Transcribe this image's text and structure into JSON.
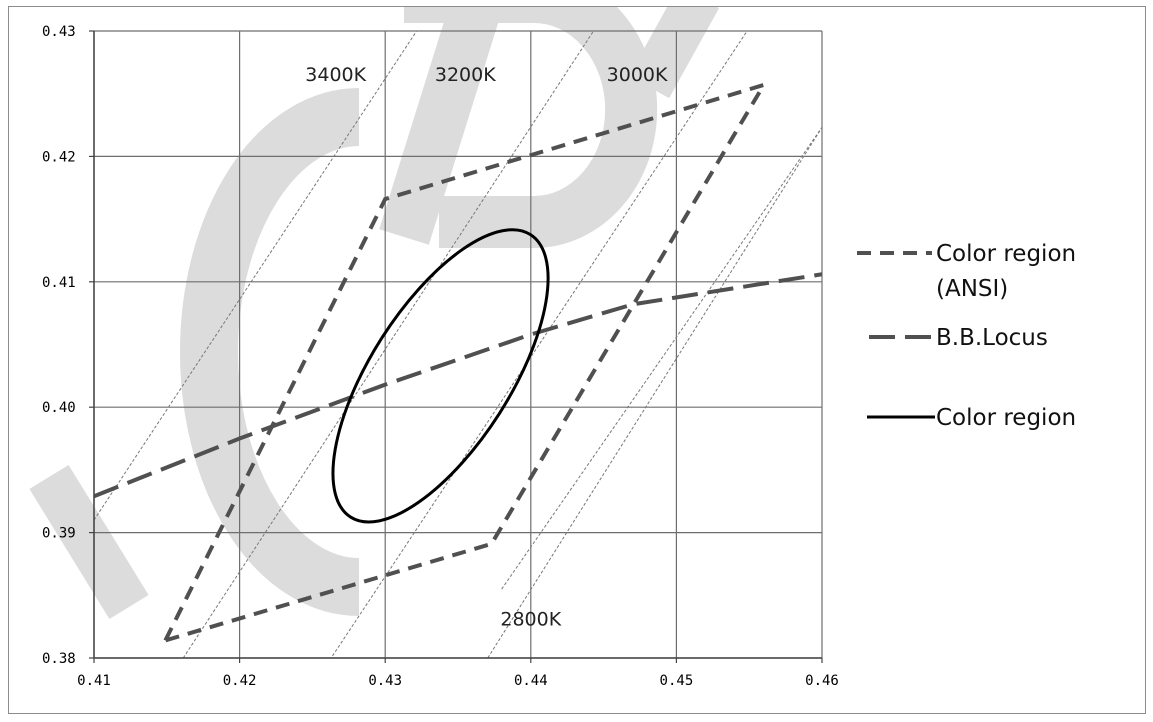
{
  "chart_data": {
    "type": "line",
    "title": "",
    "xlabel": "",
    "ylabel": "",
    "xlim": [
      0.41,
      0.46
    ],
    "ylim": [
      0.38,
      0.43
    ],
    "x_ticks": [
      0.41,
      0.42,
      0.43,
      0.44,
      0.45,
      0.46
    ],
    "y_ticks": [
      0.38,
      0.39,
      0.4,
      0.41,
      0.42,
      0.43
    ],
    "x_tick_labels": [
      "0.41",
      "0.42",
      "0.43",
      "0.44",
      "0.45",
      "0.46"
    ],
    "y_tick_labels": [
      "0.38",
      "0.39",
      "0.40",
      "0.41",
      "0.42",
      "0.43"
    ],
    "grid": true,
    "legend_position": "right",
    "series": [
      {
        "name": "Color region (ANSI)",
        "name_lines": [
          "Color region",
          "(ANSI)"
        ],
        "style": "dashed",
        "color": "#505050",
        "x": [
          0.4149,
          0.43,
          0.456,
          0.4373,
          0.4149
        ],
        "y": [
          0.3814,
          0.4166,
          0.4257,
          0.3891,
          0.3814
        ]
      },
      {
        "name": "B.B.Locus",
        "style": "long-dash",
        "color": "#505050",
        "x": [
          0.41,
          0.42,
          0.43,
          0.44,
          0.447,
          0.46
        ],
        "y": [
          0.3929,
          0.3975,
          0.4018,
          0.4058,
          0.4082,
          0.4106
        ]
      },
      {
        "name": "Color region",
        "style": "solid",
        "color": "#000000",
        "shape": "ellipse",
        "center": [
          0.4338,
          0.4025
        ],
        "axes": [
          0.0115,
          0.0048
        ],
        "rotation_deg": 57.5
      }
    ],
    "isotherms": [
      {
        "label": "3400K",
        "x": [
          0.41,
          0.435
        ],
        "y": [
          0.391,
          0.435
        ]
      },
      {
        "label": "3200K",
        "x": [
          0.415,
          0.446
        ],
        "y": [
          0.378,
          0.433
        ]
      },
      {
        "label": "3000K",
        "x": [
          0.426,
          0.46
        ],
        "y": [
          0.3795,
          0.439
        ]
      },
      {
        "label": "2800K",
        "x": [
          0.4365,
          0.462
        ],
        "y": [
          0.379,
          0.426
        ]
      }
    ],
    "isotherm_partial": [
      {
        "x": [
          0.438,
          0.461
        ],
        "y": [
          0.3855,
          0.424
        ]
      }
    ],
    "annotations": [
      {
        "text": "3400K",
        "x": 0.4266,
        "y": 0.426
      },
      {
        "text": "3200K",
        "x": 0.4355,
        "y": 0.426
      },
      {
        "text": "3000K",
        "x": 0.4473,
        "y": 0.426
      },
      {
        "text": "2800K",
        "x": 0.44,
        "y": 0.3826
      }
    ]
  },
  "colors": {
    "grid": "#6e6e6e",
    "axis": "#444444",
    "isotherm": "#777777",
    "watermark": "#dcdcdc"
  }
}
